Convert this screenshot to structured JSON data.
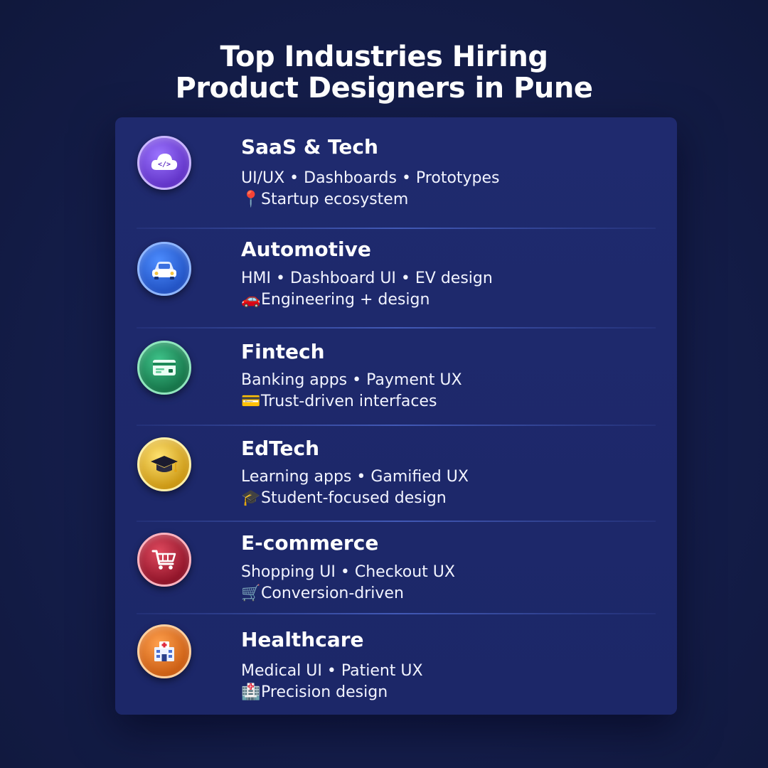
{
  "title": {
    "line1": "Top Industries Hiring",
    "line2": "Product Designers in Pune"
  },
  "industries": [
    {
      "name": "SaaS & Tech",
      "tags": "UI/UX • Dashboards • Prototypes",
      "note_emoji": "📍",
      "note": "Startup ecosystem",
      "icon": "cloud-code-icon",
      "icon_color": "#7b4fe0"
    },
    {
      "name": "Automotive",
      "tags": "HMI • Dashboard UI • EV design",
      "note_emoji": "🚗",
      "note": "Engineering + design",
      "icon": "car-icon",
      "icon_color": "#2f6fe0"
    },
    {
      "name": "Fintech",
      "tags": "Banking apps • Payment UX",
      "note_emoji": "💳",
      "note": "Trust-driven interfaces",
      "icon": "card-icon",
      "icon_color": "#1f8f5f"
    },
    {
      "name": "EdTech",
      "tags": "Learning apps • Gamified UX",
      "note_emoji": "🎓",
      "note": "Student-focused design",
      "icon": "graduation-cap-icon",
      "icon_color": "#e2b51f"
    },
    {
      "name": "E-commerce",
      "tags": "Shopping UI • Checkout UX",
      "note_emoji": "🛒",
      "note": "Conversion-driven",
      "icon": "cart-icon",
      "icon_color": "#b3223a"
    },
    {
      "name": "Healthcare",
      "tags": "Medical UI • Patient UX",
      "note_emoji": "🏥",
      "note": "Precision design",
      "icon": "hospital-icon",
      "icon_color": "#e07a22"
    }
  ]
}
